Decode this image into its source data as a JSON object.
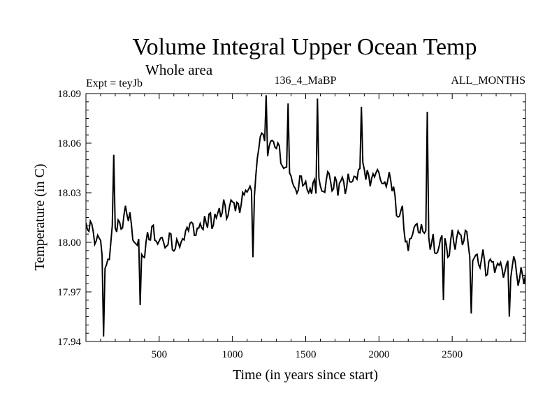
{
  "chart_data": {
    "type": "line",
    "title": "Volume Integral Upper Ocean Temp",
    "subtitle": "Whole area",
    "experiment_label": "Expt = teyJb",
    "run_label": "136_4_MaBP",
    "period_label": "ALL_MONTHS",
    "xlabel": "Time (in years since start)",
    "ylabel": "Temperature (in C)",
    "xlim": [
      0,
      3000
    ],
    "ylim": [
      17.94,
      18.09
    ],
    "xticks": [
      500,
      1000,
      1500,
      2000,
      2500
    ],
    "xtick_labels": [
      "500",
      "1000",
      "1500",
      "2000",
      "2500"
    ],
    "yticks": [
      17.94,
      17.97,
      18.0,
      18.03,
      18.06,
      18.09
    ],
    "ytick_labels": [
      "17.94",
      "17.97",
      "18.00",
      "18.03",
      "18.06",
      "18.09"
    ],
    "grid": false,
    "series": [
      {
        "name": "Volume integral upper ocean temperature",
        "x_step": 10,
        "trend_x": [
          0,
          100,
          130,
          200,
          300,
          380,
          450,
          550,
          650,
          800,
          900,
          1000,
          1100,
          1150,
          1200,
          1250,
          1300,
          1400,
          1500,
          1600,
          1700,
          1800,
          1900,
          2000,
          2100,
          2200,
          2300,
          2400,
          2500,
          2600,
          2700,
          2800,
          2900,
          3000
        ],
        "trend_y": [
          18.01,
          17.995,
          17.985,
          18.01,
          18.015,
          17.99,
          18.005,
          18.0,
          18.005,
          18.01,
          18.015,
          18.02,
          18.03,
          18.035,
          18.06,
          18.06,
          18.055,
          18.04,
          18.03,
          18.04,
          18.035,
          18.035,
          18.045,
          18.04,
          18.03,
          18.0,
          18.005,
          17.995,
          18.0,
          18.0,
          17.99,
          17.985,
          17.985,
          17.975
        ],
        "noise_amplitude": 0.011,
        "spikes": [
          {
            "x": 120,
            "y": 17.943
          },
          {
            "x": 190,
            "y": 18.053
          },
          {
            "x": 370,
            "y": 17.962
          },
          {
            "x": 1140,
            "y": 17.991
          },
          {
            "x": 1230,
            "y": 18.089
          },
          {
            "x": 1380,
            "y": 18.084
          },
          {
            "x": 1580,
            "y": 18.087
          },
          {
            "x": 1880,
            "y": 18.082
          },
          {
            "x": 2330,
            "y": 18.079
          },
          {
            "x": 2440,
            "y": 17.965
          },
          {
            "x": 2630,
            "y": 17.957
          },
          {
            "x": 2890,
            "y": 17.955
          }
        ]
      }
    ]
  }
}
